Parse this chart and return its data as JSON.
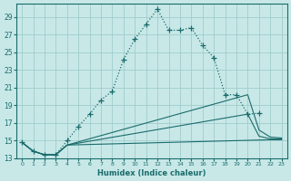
{
  "xlabel": "Humidex (Indice chaleur)",
  "bg_color": "#c8e8e8",
  "grid_color": "#a0cccc",
  "line_color": "#1a6b6b",
  "xlim": [
    -0.5,
    23.5
  ],
  "ylim": [
    13.0,
    30.5
  ],
  "xticks": [
    0,
    1,
    2,
    3,
    4,
    5,
    6,
    7,
    8,
    9,
    10,
    11,
    12,
    13,
    14,
    15,
    16,
    17,
    18,
    19,
    20,
    21,
    22,
    23
  ],
  "yticks": [
    13,
    15,
    17,
    19,
    21,
    23,
    25,
    27,
    29
  ],
  "main_x": [
    0,
    1,
    2,
    3,
    4,
    5,
    6,
    7,
    8,
    9,
    10,
    11,
    12,
    13,
    14,
    15,
    16,
    17,
    18,
    19,
    20,
    21
  ],
  "main_y": [
    14.8,
    13.8,
    13.4,
    13.4,
    15.0,
    16.6,
    18.0,
    19.6,
    20.6,
    24.2,
    26.5,
    28.2,
    29.9,
    27.5,
    27.5,
    27.8,
    25.8,
    24.4,
    20.2,
    20.2,
    18.0,
    18.1
  ],
  "line1_x": [
    0,
    1,
    2,
    3,
    4,
    20,
    21,
    22,
    23
  ],
  "line1_y": [
    14.8,
    13.8,
    13.4,
    13.4,
    14.5,
    20.2,
    16.2,
    15.4,
    15.3
  ],
  "line2_x": [
    0,
    1,
    2,
    3,
    4,
    20,
    21,
    22,
    23
  ],
  "line2_y": [
    14.8,
    13.8,
    13.4,
    13.4,
    14.5,
    18.0,
    15.5,
    15.2,
    15.2
  ],
  "line3_x": [
    0,
    1,
    2,
    3,
    4,
    22,
    23
  ],
  "line3_y": [
    14.8,
    13.8,
    13.4,
    13.4,
    14.5,
    15.1,
    15.1
  ]
}
